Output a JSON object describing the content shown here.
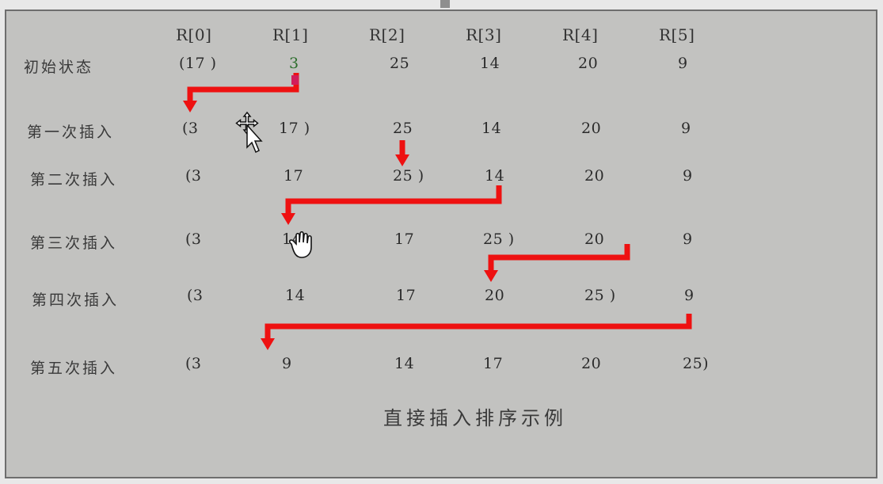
{
  "headers": [
    "R[0]",
    "R[1]",
    "R[2]",
    "R[3]",
    "R[4]",
    "R[5]"
  ],
  "rows": [
    {
      "label": "初始状态",
      "cells": [
        "(17 )",
        "3",
        "25",
        "14",
        "20",
        "9"
      ]
    },
    {
      "label": "第一次插入",
      "cells": [
        "(3",
        "17 )",
        "25",
        "14",
        "20",
        "9"
      ]
    },
    {
      "label": "第二次插入",
      "cells": [
        "(3",
        "17",
        "25 )",
        "14",
        "20",
        "9"
      ]
    },
    {
      "label": "第三次插入",
      "cells": [
        "(3",
        "14",
        "17",
        "25 )",
        "20",
        "9"
      ]
    },
    {
      "label": "第四次插入",
      "cells": [
        "(3",
        "14",
        "17",
        "20",
        "25 )",
        "9"
      ]
    },
    {
      "label": "第五次插入",
      "cells": [
        "(3",
        "9",
        "14",
        "17",
        "20",
        "25)"
      ]
    }
  ],
  "caption": "直接插入排序示例",
  "colors": {
    "arrow": "#ee1111",
    "background": "#c2c2c0",
    "text": "#2b2b2b"
  },
  "icons": [
    "move-cursor-icon",
    "hand-cursor-icon"
  ]
}
